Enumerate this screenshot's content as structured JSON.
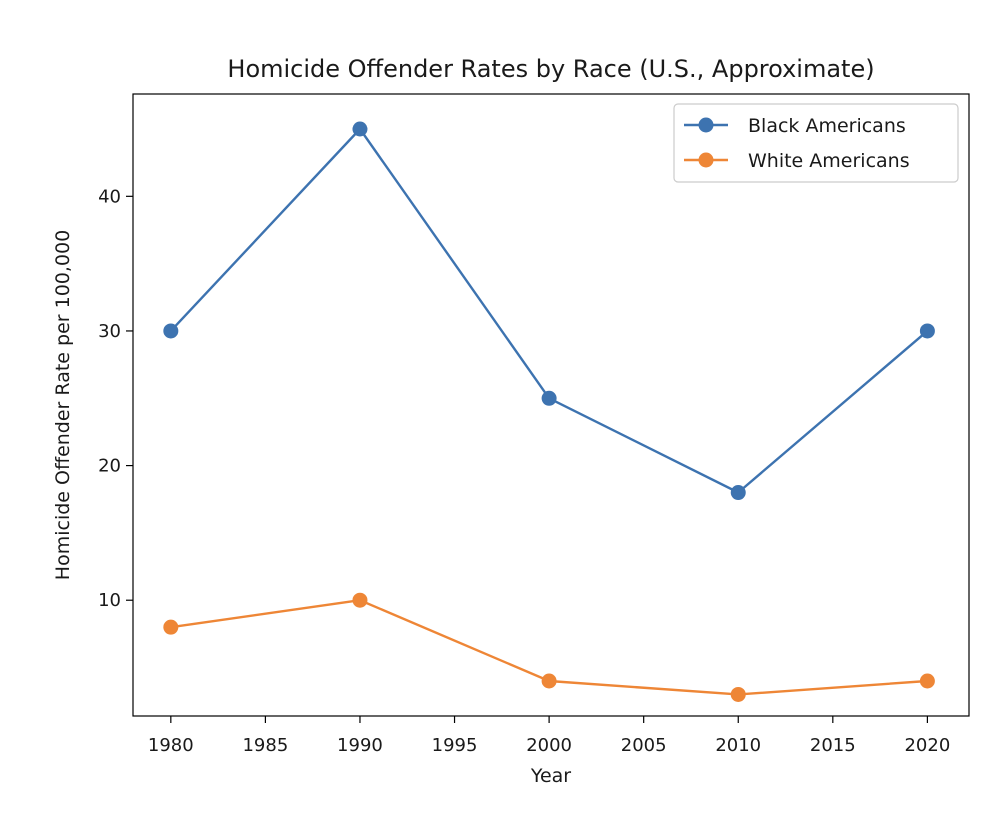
{
  "chart_data": {
    "type": "line",
    "title": "Homicide Offender Rates by Race (U.S., Approximate)",
    "xlabel": "Year",
    "ylabel": "Homicide Offender Rate per 100,000",
    "x": [
      1980,
      1990,
      2000,
      2010,
      2020
    ],
    "xlim": [
      1978,
      2022.2
    ],
    "ylim": [
      1.4,
      47.6
    ],
    "xticks": [
      1980,
      1985,
      1990,
      1995,
      2000,
      2005,
      2010,
      2015,
      2020
    ],
    "yticks": [
      10,
      20,
      30,
      40
    ],
    "grid": false,
    "legend_position": "top-right",
    "series": [
      {
        "name": "Black Americans",
        "color": "#3d73b0",
        "values": [
          30,
          45,
          25,
          18,
          30
        ]
      },
      {
        "name": "White Americans",
        "color": "#ee8636",
        "values": [
          8,
          10,
          4,
          3,
          4
        ]
      }
    ]
  }
}
